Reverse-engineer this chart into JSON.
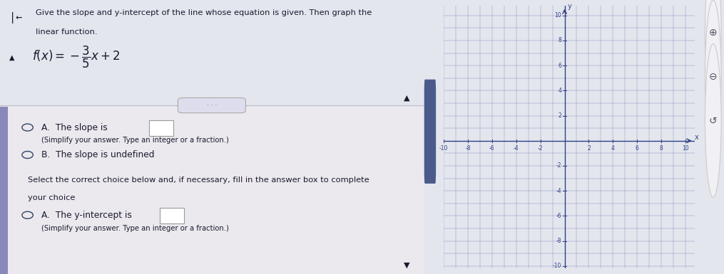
{
  "title_line1": "Give the slope and y-intercept of the line whose equation is given. Then graph the",
  "title_line2": "linear function.",
  "option_A_slope_text": "A.  The slope is",
  "option_A_slope_sub": "(Simplify your answer. Type an integer or a fraction.)",
  "option_B_slope": "B.  The slope is undefined",
  "select_line1": "Select the correct choice below and, if necessary, fill in the answer box to complete",
  "select_line2": "your choice",
  "option_A_yint_text": "A.  The y-intercept is",
  "option_A_yint_sub": "(Simplify your answer. Type an integer or a fraction.)",
  "grid_color": "#6677aa",
  "axis_color": "#334488",
  "text_color": "#1a1a2e",
  "bg_color": "#e4e6ee",
  "left_panel_bg": "#e4e6ee",
  "right_panel_bg": "#eceef5",
  "x_range": [
    -10,
    10
  ],
  "y_range": [
    -10,
    10
  ],
  "x_ticks": [
    -10,
    -8,
    -6,
    -4,
    -2,
    2,
    4,
    6,
    8,
    10
  ],
  "y_ticks": [
    -10,
    -8,
    -6,
    -4,
    -2,
    2,
    4,
    6,
    8,
    10
  ],
  "slope": -0.6,
  "y_intercept": 2,
  "scrollbar_color": "#4a5a8a",
  "scrollbar_bg": "#c0c4d0",
  "left_border_color": "#8888bb",
  "divider_color": "#bbbbcc",
  "radio_color": "#334466",
  "box_edge_color": "#999999"
}
